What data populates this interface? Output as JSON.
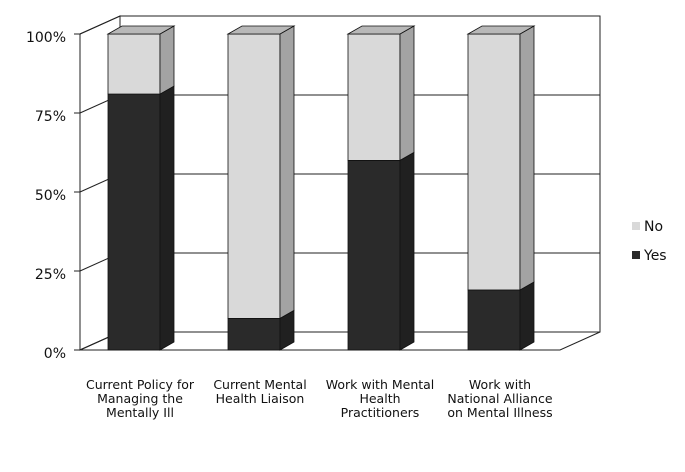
{
  "chart_data": {
    "type": "bar",
    "stacked": true,
    "categories": [
      "Current Policy for Managing the Mentally Ill",
      "Current Mental Health Liaison",
      "Work with Mental Health Practitioners",
      "Work with National Alliance on Mental Illness"
    ],
    "series": [
      {
        "name": "Yes",
        "color": "#2a2a2a",
        "values": [
          81,
          10,
          60,
          19
        ]
      },
      {
        "name": "No",
        "color": "#d9d9d9",
        "values": [
          19,
          90,
          40,
          81
        ]
      }
    ],
    "ylim": [
      0,
      100
    ],
    "yticks": [
      {
        "value": 0,
        "label": "0%"
      },
      {
        "value": 25,
        "label": "25%"
      },
      {
        "value": 50,
        "label": "50%"
      },
      {
        "value": 75,
        "label": "75%"
      },
      {
        "value": 100,
        "label": "100%"
      }
    ],
    "grid": true,
    "legend": "right"
  }
}
